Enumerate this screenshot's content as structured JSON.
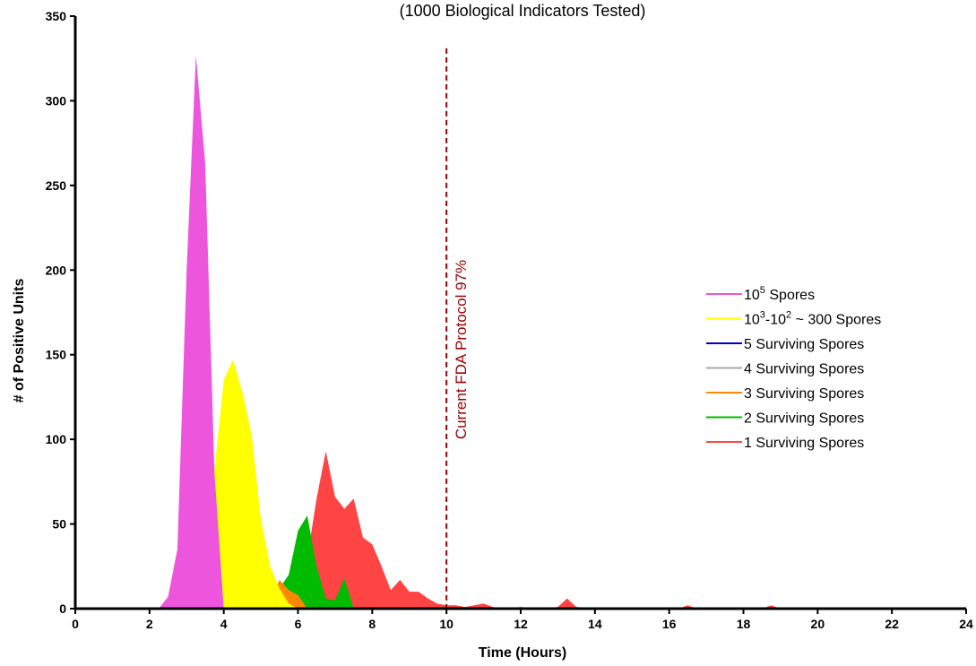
{
  "chart_data": {
    "type": "area",
    "subtitle": "(1000 Biological Indicators Tested)",
    "xlabel": "Time (Hours)",
    "ylabel": "# of Positive Units",
    "xlim": [
      0,
      24
    ],
    "ylim": [
      0,
      350
    ],
    "x_ticks": [
      0,
      2,
      4,
      6,
      8,
      10,
      12,
      14,
      16,
      18,
      20,
      22,
      24
    ],
    "y_ticks": [
      0,
      50,
      100,
      150,
      200,
      250,
      300,
      350
    ],
    "x_tick_labels": [
      "0",
      "2",
      "4",
      "6",
      "8",
      "10",
      "12",
      "14",
      "16",
      "18",
      "20",
      "22",
      "24"
    ],
    "y_tick_labels": [
      "0",
      "50",
      "100",
      "150",
      "200",
      "250",
      "300",
      "350"
    ],
    "grid": false,
    "legend_position": "right",
    "annotation": {
      "x": 10,
      "label": "Current FDA Protocol 97%",
      "color": "#990000",
      "style": "dashed"
    },
    "series": [
      {
        "name": "1 Surviving Spores",
        "label_parts": [
          "1 Surviving Spores"
        ],
        "color": "#ff4444",
        "x": [
          5.5,
          6.0,
          6.25,
          6.5,
          6.75,
          7.0,
          7.25,
          7.5,
          7.75,
          8.0,
          8.25,
          8.5,
          8.75,
          9.0,
          9.25,
          9.5,
          9.75,
          10.0,
          10.25,
          10.5,
          10.75,
          11.0,
          11.25,
          11.5,
          12.0,
          12.5,
          13.0,
          13.25,
          13.5,
          14.0,
          16.25,
          16.5,
          16.75,
          18.5,
          18.75,
          19.0,
          24.0
        ],
        "values": [
          0,
          0,
          30,
          65,
          93,
          66,
          59,
          65,
          42,
          38,
          25,
          11,
          17,
          10,
          10,
          6,
          3,
          2,
          2,
          1,
          2,
          3,
          1,
          0,
          1,
          0,
          1,
          6,
          1,
          0,
          0,
          2,
          0,
          0,
          2,
          0,
          0
        ]
      },
      {
        "name": "2 Surviving Spores",
        "label_parts": [
          "2 Surviving Spores"
        ],
        "color": "#00bb00",
        "x": [
          4.5,
          4.75,
          5.0,
          5.25,
          5.5,
          5.75,
          6.0,
          6.25,
          6.5,
          6.75,
          7.0,
          7.25,
          7.5
        ],
        "values": [
          0,
          5,
          12,
          12,
          12,
          20,
          46,
          55,
          25,
          6,
          5,
          18,
          0
        ]
      },
      {
        "name": "3 Surviving Spores",
        "label_parts": [
          "3 Surviving Spores"
        ],
        "color": "#ff8800",
        "x": [
          5.0,
          5.25,
          5.5,
          5.75,
          6.0,
          6.25
        ],
        "values": [
          0,
          5,
          17,
          11,
          8,
          0
        ]
      },
      {
        "name": "4 Surviving Spores",
        "label_parts": [
          "4 Surviving Spores"
        ],
        "color": "#aaaaaa",
        "x": [
          3.75,
          4.0,
          4.25,
          4.5,
          4.75,
          5.0,
          5.25,
          5.5,
          5.75
        ],
        "values": [
          0,
          6,
          7,
          10,
          4,
          5,
          10,
          5,
          0
        ]
      },
      {
        "name": "5 Surviving Spores",
        "label_parts": [
          "5 Surviving Spores"
        ],
        "color": "#0000cc",
        "x": [
          3.5,
          3.75,
          4.0,
          4.5,
          4.75,
          5.0
        ],
        "values": [
          0,
          8,
          0,
          0,
          8,
          0
        ]
      },
      {
        "name": "10³-10² ~ 300 Spores",
        "label_parts": [
          "10",
          "3",
          "-10",
          "2",
          " ~ 300 Spores"
        ],
        "color": "#ffff00",
        "x": [
          2.75,
          3.0,
          3.25,
          3.5,
          3.75,
          4.0,
          4.25,
          4.5,
          4.75,
          5.0,
          5.25,
          5.5,
          5.75,
          6.0
        ],
        "values": [
          0,
          8,
          35,
          50,
          82,
          135,
          147,
          128,
          103,
          53,
          25,
          12,
          3,
          0
        ]
      },
      {
        "name": "10⁵ Spores",
        "label_parts": [
          "10",
          "5",
          " Spores"
        ],
        "color": "#ee55dd",
        "x": [
          2.25,
          2.5,
          2.75,
          3.0,
          3.25,
          3.5,
          3.75,
          4.0
        ],
        "values": [
          0,
          7,
          35,
          200,
          327,
          263,
          80,
          0
        ]
      }
    ],
    "legend_order": [
      6,
      5,
      4,
      3,
      2,
      1,
      0
    ]
  }
}
